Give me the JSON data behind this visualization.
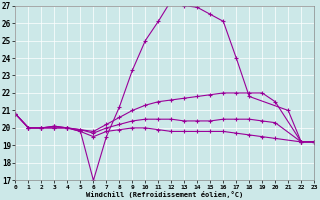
{
  "xlabel": "Windchill (Refroidissement éolien,°C)",
  "xlim": [
    0,
    23
  ],
  "ylim": [
    17,
    27
  ],
  "yticks": [
    17,
    18,
    19,
    20,
    21,
    22,
    23,
    24,
    25,
    26,
    27
  ],
  "xticks": [
    0,
    1,
    2,
    3,
    4,
    5,
    6,
    7,
    8,
    9,
    10,
    11,
    12,
    13,
    14,
    15,
    16,
    17,
    18,
    19,
    20,
    21,
    22,
    23
  ],
  "bg_color": "#cce8e8",
  "line_color": "#990099",
  "lines": [
    {
      "x": [
        0,
        1,
        2,
        3,
        4,
        5,
        6,
        7,
        8,
        9,
        10,
        11,
        12,
        13,
        14,
        15,
        16,
        17,
        18,
        21,
        22,
        23
      ],
      "y": [
        20.8,
        20.0,
        20.0,
        20.1,
        20.0,
        19.8,
        17.0,
        19.5,
        21.2,
        23.3,
        25.0,
        26.1,
        27.3,
        27.0,
        26.9,
        26.5,
        26.1,
        24.0,
        21.8,
        21.0,
        19.2,
        19.2
      ]
    },
    {
      "x": [
        0,
        1,
        2,
        3,
        4,
        5,
        6,
        7,
        8,
        9,
        10,
        11,
        12,
        13,
        14,
        15,
        16,
        17,
        18,
        19,
        20,
        22,
        23
      ],
      "y": [
        20.8,
        20.0,
        20.0,
        20.1,
        20.0,
        19.9,
        19.8,
        20.2,
        20.6,
        21.0,
        21.3,
        21.5,
        21.6,
        21.7,
        21.8,
        21.9,
        22.0,
        22.0,
        22.0,
        22.0,
        21.5,
        19.2,
        19.2
      ]
    },
    {
      "x": [
        0,
        1,
        2,
        3,
        4,
        5,
        6,
        7,
        8,
        9,
        10,
        11,
        12,
        13,
        14,
        15,
        16,
        17,
        18,
        19,
        20,
        22,
        23
      ],
      "y": [
        20.8,
        20.0,
        20.0,
        20.0,
        20.0,
        19.9,
        19.7,
        20.0,
        20.2,
        20.4,
        20.5,
        20.5,
        20.5,
        20.4,
        20.4,
        20.4,
        20.5,
        20.5,
        20.5,
        20.4,
        20.3,
        19.2,
        19.2
      ]
    },
    {
      "x": [
        0,
        1,
        2,
        3,
        4,
        5,
        6,
        7,
        8,
        9,
        10,
        11,
        12,
        13,
        14,
        15,
        16,
        17,
        18,
        19,
        20,
        22,
        23
      ],
      "y": [
        20.8,
        20.0,
        20.0,
        20.0,
        20.0,
        19.8,
        19.5,
        19.8,
        19.9,
        20.0,
        20.0,
        19.9,
        19.8,
        19.8,
        19.8,
        19.8,
        19.8,
        19.7,
        19.6,
        19.5,
        19.4,
        19.2,
        19.2
      ]
    }
  ]
}
